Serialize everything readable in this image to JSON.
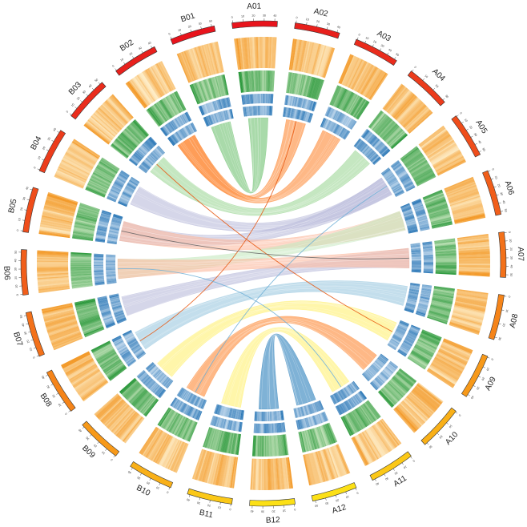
{
  "chromosomes": [
    {
      "name": "A01",
      "color": "#e8141c",
      "ticks": [
        "0",
        "10",
        "20",
        "30",
        "40"
      ]
    },
    {
      "name": "A02",
      "color": "#e8201c",
      "ticks": [
        "0",
        "10",
        "20",
        "30",
        "40"
      ]
    },
    {
      "name": "A03",
      "color": "#ea2c1c",
      "ticks": [
        "0",
        "10",
        "20",
        "30",
        "40",
        "50"
      ]
    },
    {
      "name": "A04",
      "color": "#ec3c1c",
      "ticks": [
        "0",
        "10",
        "20",
        "30"
      ]
    },
    {
      "name": "A05",
      "color": "#ef4d1b",
      "ticks": [
        "0",
        "10",
        "20",
        "30",
        "40",
        "50"
      ]
    },
    {
      "name": "A06",
      "color": "#f15e1a",
      "ticks": [
        "0",
        "10",
        "20",
        "30",
        "40",
        "50"
      ]
    },
    {
      "name": "A07",
      "color": "#f3711a",
      "ticks": [
        "0",
        "10",
        "20",
        "30",
        "40",
        "50"
      ]
    },
    {
      "name": "A08",
      "color": "#f58419",
      "ticks": [
        "0",
        "10",
        "20",
        "30"
      ]
    },
    {
      "name": "A09",
      "color": "#f79919",
      "ticks": [
        "0",
        "10",
        "20",
        "30",
        "40"
      ]
    },
    {
      "name": "A10",
      "color": "#f9b018",
      "ticks": [
        "0",
        "10",
        "20",
        "30"
      ]
    },
    {
      "name": "A11",
      "color": "#fbc817",
      "ticks": [
        "0",
        "10",
        "20",
        "30",
        "40"
      ]
    },
    {
      "name": "A12",
      "color": "#fce016",
      "ticks": [
        "0",
        "10",
        "20",
        "30",
        "40"
      ]
    },
    {
      "name": "B12",
      "color": "#fce016",
      "ticks": [
        "0",
        "10",
        "20",
        "30",
        "40"
      ]
    },
    {
      "name": "B11",
      "color": "#fbc817",
      "ticks": [
        "0",
        "10",
        "20",
        "30",
        "40"
      ]
    },
    {
      "name": "B10",
      "color": "#f9b018",
      "ticks": [
        "0",
        "10",
        "20",
        "30",
        "40"
      ]
    },
    {
      "name": "B09",
      "color": "#f79919",
      "ticks": [
        "0",
        "10",
        "20",
        "30",
        "40"
      ]
    },
    {
      "name": "B08",
      "color": "#f58419",
      "ticks": [
        "0",
        "10",
        "20",
        "30",
        "40"
      ]
    },
    {
      "name": "B07",
      "color": "#f3711a",
      "ticks": [
        "0",
        "10",
        "20",
        "30",
        "40",
        "50"
      ]
    },
    {
      "name": "B06",
      "color": "#f15e1a",
      "ticks": [
        "0",
        "10",
        "20",
        "30",
        "40",
        "50"
      ]
    },
    {
      "name": "B05",
      "color": "#ef4d1b",
      "ticks": [
        "0",
        "10",
        "20",
        "30",
        "40"
      ]
    },
    {
      "name": "B04",
      "color": "#ec3c1c",
      "ticks": [
        "0",
        "10",
        "20",
        "30",
        "40"
      ]
    },
    {
      "name": "B03",
      "color": "#ea2c1c",
      "ticks": [
        "0",
        "10",
        "20",
        "30",
        "40",
        "50"
      ]
    },
    {
      "name": "B02",
      "color": "#e8201c",
      "ticks": [
        "0",
        "10",
        "20",
        "30",
        "40"
      ]
    },
    {
      "name": "B01",
      "color": "#e8141c",
      "ticks": [
        "0",
        "10",
        "20",
        "30",
        "40"
      ]
    }
  ],
  "tracks": [
    {
      "name": "density-yellow",
      "low": "#fff6d8",
      "high": "#f39a2a"
    },
    {
      "name": "density-green",
      "low": "#cfe9c4",
      "high": "#2e9a3e"
    },
    {
      "name": "density-blue-outer",
      "low": "#dbe9f6",
      "high": "#2f7ab8"
    },
    {
      "name": "density-blue-inner",
      "low": "#dbe9f6",
      "high": "#2f7ab8"
    }
  ],
  "links": [
    {
      "from": "A01",
      "to": "B01",
      "color": "#74c476"
    },
    {
      "from": "A02",
      "to": "B02",
      "color": "#fd8d3c"
    },
    {
      "from": "A03",
      "to": "B02",
      "color": "#fd8d3c"
    },
    {
      "from": "A04",
      "to": "B03",
      "color": "#a1d99b"
    },
    {
      "from": "A05",
      "to": "B04",
      "color": "#bcbddc"
    },
    {
      "from": "A05",
      "to": "B05",
      "color": "#bcbddc"
    },
    {
      "from": "A06",
      "to": "B05",
      "color": "#fcbba1"
    },
    {
      "from": "A06",
      "to": "B06",
      "color": "#c7e9c0"
    },
    {
      "from": "A07",
      "to": "B07",
      "color": "#bcbddc"
    },
    {
      "from": "A07",
      "to": "B06",
      "color": "#fcbba1"
    },
    {
      "from": "A08",
      "to": "B08",
      "color": "#9ecae1"
    },
    {
      "from": "A09",
      "to": "B09",
      "color": "#fff176"
    },
    {
      "from": "A10",
      "to": "B10",
      "color": "#fd8d3c"
    },
    {
      "from": "A11",
      "to": "B11",
      "color": "#fff176"
    },
    {
      "from": "A12",
      "to": "B12",
      "color": "#3182bd"
    }
  ]
}
